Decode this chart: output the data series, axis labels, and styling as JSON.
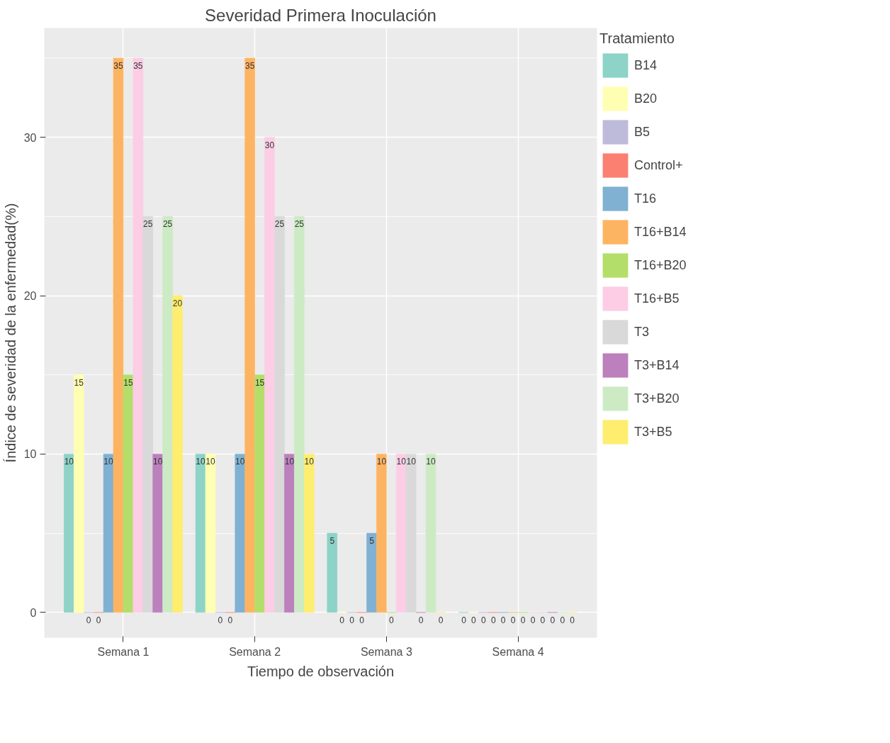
{
  "chart_data": {
    "type": "bar",
    "title": "Severidad Primera Inoculación",
    "xlabel": "Tiempo de observación",
    "ylabel": "Índice de severidad de la enfermedad(%)",
    "legend_title": "Tratamiento",
    "categories": [
      "Semana 1",
      "Semana 2",
      "Semana 3",
      "Semana 4"
    ],
    "series": [
      {
        "name": "B14",
        "color": "#8dd3c7",
        "values": [
          10,
          10,
          5,
          0
        ]
      },
      {
        "name": "B20",
        "color": "#ffffb3",
        "values": [
          15,
          10,
          0,
          0
        ]
      },
      {
        "name": "B5",
        "color": "#bebada",
        "values": [
          0,
          0,
          0,
          0
        ]
      },
      {
        "name": "Control+",
        "color": "#fb8072",
        "values": [
          0,
          0,
          0,
          0
        ]
      },
      {
        "name": "T16",
        "color": "#80b1d3",
        "values": [
          10,
          10,
          5,
          0
        ]
      },
      {
        "name": "T16+B14",
        "color": "#fdb462",
        "values": [
          35,
          35,
          10,
          0
        ]
      },
      {
        "name": "T16+B20",
        "color": "#b3de69",
        "values": [
          15,
          15,
          0,
          0
        ]
      },
      {
        "name": "T16+B5",
        "color": "#fccde5",
        "values": [
          35,
          30,
          10,
          0
        ]
      },
      {
        "name": "T3",
        "color": "#d9d9d9",
        "values": [
          25,
          25,
          10,
          0
        ]
      },
      {
        "name": "T3+B14",
        "color": "#bc80bd",
        "values": [
          10,
          10,
          0,
          0
        ]
      },
      {
        "name": "T3+B20",
        "color": "#ccebc5",
        "values": [
          25,
          25,
          10,
          0
        ]
      },
      {
        "name": "T3+B5",
        "color": "#ffed6f",
        "values": [
          20,
          10,
          0,
          0
        ]
      }
    ],
    "ylim": [
      -1.6,
      36.9
    ],
    "yticks": [
      0,
      10,
      20,
      30
    ],
    "grid": true,
    "legend": "right",
    "data_labels": true
  }
}
